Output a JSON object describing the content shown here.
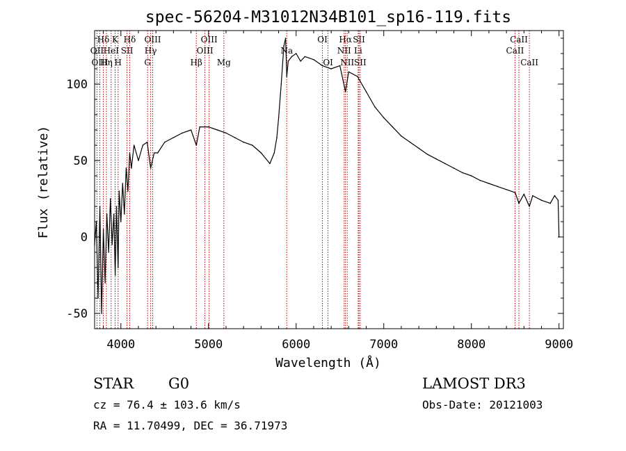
{
  "chart_data": {
    "type": "line",
    "title": "spec-56204-M31012N34B101_sp16-119.fits",
    "xlabel": "Wavelength (Å)",
    "ylabel": "Flux (relative)",
    "xlim": [
      3700,
      9050
    ],
    "ylim": [
      -60,
      135
    ],
    "xticks": [
      4000,
      5000,
      6000,
      7000,
      8000,
      9000
    ],
    "yticks": [
      -50,
      0,
      50,
      100
    ],
    "grid": false,
    "series": [
      {
        "name": "spectrum",
        "color": "#000000",
        "x": [
          3700,
          3720,
          3740,
          3760,
          3780,
          3800,
          3820,
          3840,
          3860,
          3880,
          3900,
          3920,
          3935,
          3950,
          3968,
          3980,
          4000,
          4020,
          4040,
          4060,
          4080,
          4101,
          4120,
          4150,
          4200,
          4250,
          4300,
          4340,
          4380,
          4420,
          4500,
          4600,
          4700,
          4800,
          4861,
          4900,
          5000,
          5100,
          5200,
          5300,
          5400,
          5500,
          5600,
          5700,
          5750,
          5780,
          5800,
          5830,
          5860,
          5880,
          5893,
          5910,
          5950,
          6000,
          6050,
          6100,
          6200,
          6300,
          6400,
          6500,
          6563,
          6600,
          6700,
          6800,
          6900,
          7000,
          7100,
          7200,
          7300,
          7400,
          7500,
          7600,
          7700,
          7800,
          7900,
          8000,
          8100,
          8200,
          8300,
          8400,
          8500,
          8542,
          8600,
          8662,
          8700,
          8800,
          8900,
          8950,
          8990,
          9000
        ],
        "y": [
          -5,
          10,
          -40,
          20,
          -50,
          5,
          -30,
          15,
          -10,
          25,
          -5,
          15,
          -25,
          20,
          -20,
          30,
          10,
          35,
          15,
          45,
          30,
          55,
          45,
          60,
          50,
          60,
          62,
          45,
          55,
          55,
          62,
          65,
          68,
          70,
          60,
          72,
          72,
          70,
          68,
          65,
          62,
          60,
          55,
          48,
          55,
          65,
          78,
          100,
          125,
          130,
          105,
          115,
          118,
          120,
          115,
          118,
          116,
          112,
          110,
          112,
          95,
          108,
          105,
          95,
          85,
          78,
          72,
          66,
          62,
          58,
          54,
          51,
          48,
          45,
          42,
          40,
          37,
          35,
          33,
          31,
          29,
          22,
          28,
          20,
          27,
          24,
          22,
          27,
          24,
          0
        ]
      }
    ],
    "line_markers": [
      {
        "label": "Hδ",
        "x": 3799,
        "row": 1
      },
      {
        "label": "OII",
        "x": 3727,
        "row": 2
      },
      {
        "label": "OIII",
        "x": 3760,
        "row": 3
      },
      {
        "label": "K",
        "x": 3934,
        "row": 1
      },
      {
        "label": "HeI",
        "x": 3889,
        "row": 2
      },
      {
        "label": "Hη",
        "x": 3835,
        "row": 3
      },
      {
        "label": "SII",
        "x": 4070,
        "row": 2
      },
      {
        "label": "H",
        "x": 3968,
        "row": 3
      },
      {
        "label": "Hδ",
        "x": 4101,
        "row": 1
      },
      {
        "label": "OIII",
        "x": 4363,
        "row": 1
      },
      {
        "label": "Hγ",
        "x": 4340,
        "row": 2
      },
      {
        "label": "G",
        "x": 4305,
        "row": 3
      },
      {
        "label": "OIII",
        "x": 5007,
        "row": 1
      },
      {
        "label": "OIII",
        "x": 4959,
        "row": 2
      },
      {
        "label": "Hβ",
        "x": 4861,
        "row": 3
      },
      {
        "label": "Mg",
        "x": 5175,
        "row": 3
      },
      {
        "label": "Na",
        "x": 5893,
        "row": 2
      },
      {
        "label": "OI",
        "x": 6300,
        "row": 1
      },
      {
        "label": "OI",
        "x": 6364,
        "row": 3
      },
      {
        "label": "Hα",
        "x": 6563,
        "row": 1
      },
      {
        "label": "SII",
        "x": 6717,
        "row": 1
      },
      {
        "label": "NII",
        "x": 6548,
        "row": 2
      },
      {
        "label": "Li",
        "x": 6708,
        "row": 2
      },
      {
        "label": "NII",
        "x": 6583,
        "row": 3
      },
      {
        "label": "SII",
        "x": 6731,
        "row": 3
      },
      {
        "label": "CaII",
        "x": 8542,
        "row": 1
      },
      {
        "label": "CaII",
        "x": 8498,
        "row": 2
      },
      {
        "label": "CaII",
        "x": 8662,
        "row": 3
      }
    ]
  },
  "info": {
    "object_type": "STAR",
    "subclass": "G0",
    "survey": "LAMOST DR3",
    "redshift": "cz = 76.4 ± 103.6 km/s",
    "obs_date": "Obs-Date: 20121003",
    "coords": "RA =  11.70499, DEC =  36.71973"
  }
}
